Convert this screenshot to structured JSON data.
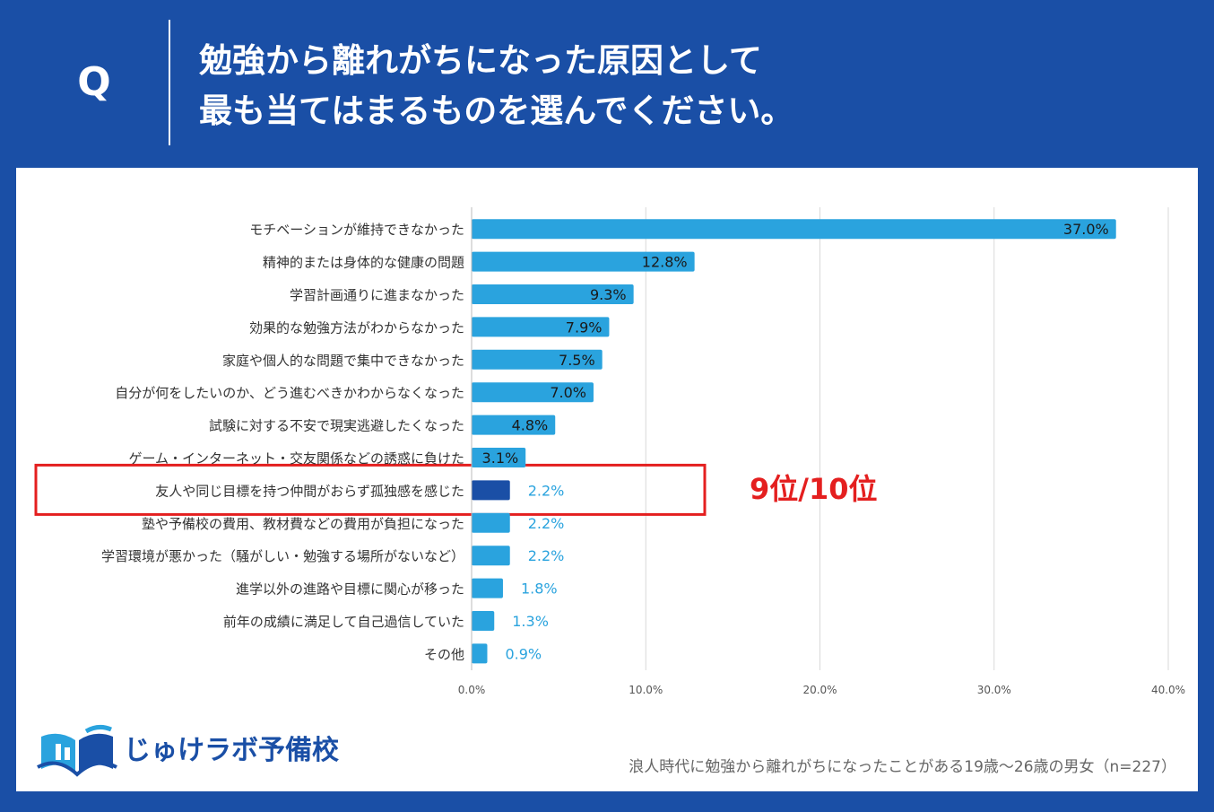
{
  "header": {
    "q_label": "Q",
    "title_line1": "勉強から離れがちになった原因として",
    "title_line2": "最も当てはまるものを選んでください。"
  },
  "colors": {
    "background": "#1a4fa6",
    "bar": "#2aa3de",
    "highlight_bar": "#1a4fa6",
    "highlight_box": "#e41f1f"
  },
  "chart_data": {
    "type": "bar",
    "orientation": "horizontal",
    "categories": [
      "モチベーションが維持できなかった",
      "精神的または身体的な健康の問題",
      "学習計画通りに進まなかった",
      "効果的な勉強方法がわからなかった",
      "家庭や個人的な問題で集中できなかった",
      "自分が何をしたいのか、どう進むべきかわからなくなった",
      "試験に対する不安で現実逃避したくなった",
      "ゲーム・インターネット・交友関係などの誘惑に負けた",
      "友人や同じ目標を持つ仲間がおらず孤独感を感じた",
      "塾や予備校の費用、教材費などの費用が負担になった",
      "学習環境が悪かった（騒がしい・勉強する場所がないなど）",
      "進学以外の進路や目標に関心が移った",
      "前年の成績に満足して自己過信していた",
      "その他"
    ],
    "values": [
      37.0,
      12.8,
      9.3,
      7.9,
      7.5,
      7.0,
      4.8,
      3.1,
      2.2,
      2.2,
      2.2,
      1.8,
      1.3,
      0.9
    ],
    "value_labels": [
      "37.0%",
      "12.8%",
      "9.3%",
      "7.9%",
      "7.5%",
      "7.0%",
      "4.8%",
      "3.1%",
      "2.2%",
      "2.2%",
      "2.2%",
      "1.8%",
      "1.3%",
      "0.9%"
    ],
    "xlim": [
      0,
      40
    ],
    "x_ticks": [
      "0.0%",
      "10.0%",
      "20.0%",
      "30.0%",
      "40.0%"
    ],
    "grid": true,
    "highlight_index": 8
  },
  "annotation": {
    "rank_text": "9位/10位"
  },
  "logo": {
    "text": "じゅけラボ予備校",
    "icon": "book-logo-icon"
  },
  "footnote": "浪人時代に勉強から離れがちになったことがある19歳〜26歳の男女（n=227）"
}
